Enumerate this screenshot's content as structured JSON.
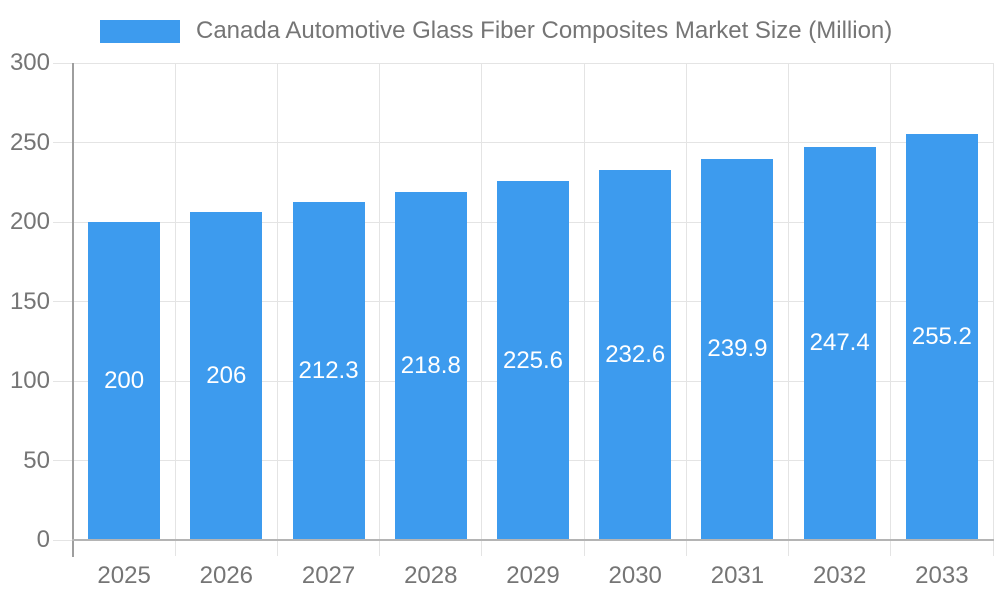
{
  "colors": {
    "bar": "#3d9bee",
    "grid": "#e4e4e4",
    "axis_line": "#9e9e9e",
    "baseline": "#b4b4b4",
    "text": "#757575",
    "value_label": "#ffffff",
    "background": "#ffffff"
  },
  "legend": {
    "label": "Canada Automotive Glass Fiber Composites Market Size (Million)",
    "swatch_color": "#3d9bee"
  },
  "chart_data": {
    "type": "bar",
    "title": "Canada Automotive Glass Fiber Composites Market Size (Million)",
    "categories": [
      "2025",
      "2026",
      "2027",
      "2028",
      "2029",
      "2030",
      "2031",
      "2032",
      "2033"
    ],
    "series": [
      {
        "name": "Canada Automotive Glass Fiber Composites Market Size (Million)",
        "values": [
          200,
          206,
          212.3,
          218.8,
          225.6,
          232.6,
          239.9,
          247.4,
          255.2
        ]
      }
    ],
    "data_labels": [
      "200",
      "206",
      "212.3",
      "218.8",
      "225.6",
      "232.6",
      "239.9",
      "247.4",
      "255.2"
    ],
    "xlabel": "",
    "ylabel": "",
    "ylim": [
      0,
      300
    ],
    "yticks": [
      0,
      50,
      100,
      150,
      200,
      250,
      300
    ],
    "grid": true,
    "gridlines": "horizontal-and-vertical",
    "legend_position": "top-left",
    "bar_color": "#3d9bee",
    "data_label_position": "center-of-bar"
  }
}
